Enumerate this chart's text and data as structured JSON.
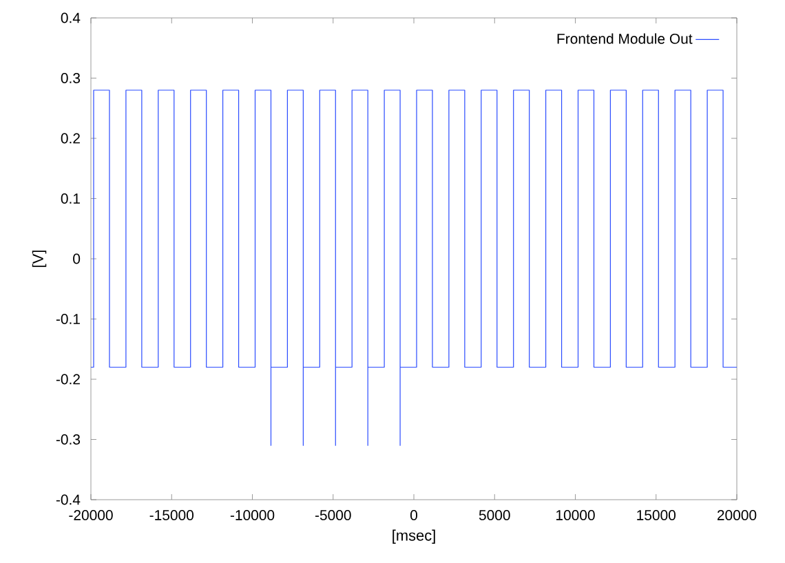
{
  "chart_data": {
    "type": "line",
    "xlabel": "[msec]",
    "ylabel": "[V]",
    "xlim": [
      -20000,
      20000
    ],
    "ylim": [
      -0.4,
      0.4
    ],
    "xticks": [
      -20000,
      -15000,
      -10000,
      -5000,
      0,
      5000,
      10000,
      15000,
      20000
    ],
    "yticks": [
      -0.4,
      -0.3,
      -0.2,
      -0.1,
      0,
      0.1,
      0.2,
      0.3,
      0.4
    ],
    "legend": "top right",
    "series": [
      {
        "name": "Frontend Module Out",
        "color": "#2b4cff",
        "x": [
          -20000,
          -19830,
          -19830,
          -18850,
          -18850,
          -17830,
          -17830,
          -16850,
          -16850,
          -15830,
          -15830,
          -14850,
          -14850,
          -13830,
          -13830,
          -12850,
          -12850,
          -11830,
          -11830,
          -10850,
          -10850,
          -9830,
          -9830,
          -8850,
          -8850,
          -8850,
          -7830,
          -7830,
          -6850,
          -6850,
          -6850,
          -5830,
          -5830,
          -4850,
          -4850,
          -4850,
          -3830,
          -3830,
          -2850,
          -2850,
          -2850,
          -1830,
          -1830,
          -850,
          -850,
          -850,
          170,
          170,
          1150,
          1150,
          2170,
          2170,
          3150,
          3150,
          4170,
          4170,
          5150,
          5150,
          6170,
          6170,
          7150,
          7150,
          8170,
          8170,
          9150,
          9150,
          10170,
          10170,
          11150,
          11150,
          12170,
          12170,
          13150,
          13150,
          14170,
          14170,
          15150,
          15150,
          16170,
          16170,
          17150,
          17150,
          18170,
          18170,
          19150,
          19150,
          20000
        ],
        "values": [
          -0.18,
          -0.18,
          0.28,
          0.28,
          -0.18,
          -0.18,
          0.28,
          0.28,
          -0.18,
          -0.18,
          0.28,
          0.28,
          -0.18,
          -0.18,
          0.28,
          0.28,
          -0.18,
          -0.18,
          0.28,
          0.28,
          -0.18,
          -0.18,
          0.28,
          0.28,
          -0.31,
          -0.18,
          -0.18,
          0.28,
          0.28,
          -0.31,
          -0.18,
          -0.18,
          0.28,
          0.28,
          -0.31,
          -0.18,
          -0.18,
          0.28,
          0.28,
          -0.31,
          -0.18,
          -0.18,
          0.28,
          0.28,
          -0.31,
          -0.18,
          -0.18,
          0.28,
          0.28,
          -0.18,
          -0.18,
          0.28,
          0.28,
          -0.18,
          -0.18,
          0.28,
          0.28,
          -0.18,
          -0.18,
          0.28,
          0.28,
          -0.18,
          -0.18,
          0.28,
          0.28,
          -0.18,
          -0.18,
          0.28,
          0.28,
          -0.18,
          -0.18,
          0.28,
          0.28,
          -0.18,
          -0.18,
          0.28,
          0.28,
          -0.18,
          -0.18,
          0.28,
          0.28,
          -0.18,
          -0.18,
          0.28,
          0.28,
          -0.18,
          -0.18
        ]
      }
    ]
  }
}
